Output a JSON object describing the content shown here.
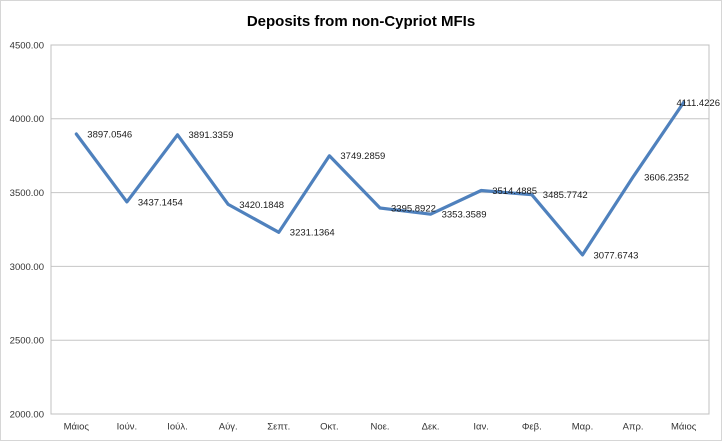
{
  "chart_data": {
    "type": "line",
    "title": "Deposits from non-Cypriot MFIs",
    "categories": [
      "Μάιος",
      "Ιούν.",
      "Ιούλ.",
      "Αύγ.",
      "Σεπτ.",
      "Οκτ.",
      "Νοε.",
      "Δεκ.",
      "Ιαν.",
      "Φεβ.",
      "Μαρ.",
      "Απρ.",
      "Μάιος"
    ],
    "series": [
      {
        "name": "Deposits from non-Cypriot MFIs",
        "values": [
          3897.0546,
          3437.1454,
          3891.3359,
          3420.1848,
          3231.1364,
          3749.2859,
          3395.8922,
          3353.3589,
          3514.4885,
          3485.7742,
          3077.6743,
          3606.2352,
          4111.4226
        ]
      }
    ],
    "data_labels": [
      "3897.0546",
      "3437.1454",
      "3891.3359",
      "3420.1848",
      "3231.1364",
      "3749.2859",
      "3395.8922",
      "3353.3589",
      "3514.4885",
      "3485.7742",
      "3077.6743",
      "3606.2352",
      "4111.4226"
    ],
    "xlabel": "",
    "ylabel": "",
    "ylim": [
      2000,
      4500
    ],
    "ytick_step": 500,
    "ytick_labels": [
      "2000.00",
      "2500.00",
      "3000.00",
      "3500.00",
      "4000.00",
      "4500.00"
    ],
    "grid": true,
    "legend_position": "none",
    "colors": {
      "line": "#4F81BD",
      "gridline": "#c6c6c6",
      "plot_border": "#c0c0c0",
      "axis_text": "#333333",
      "data_label_text": "#1a1a1a",
      "title_text": "#000000"
    }
  }
}
